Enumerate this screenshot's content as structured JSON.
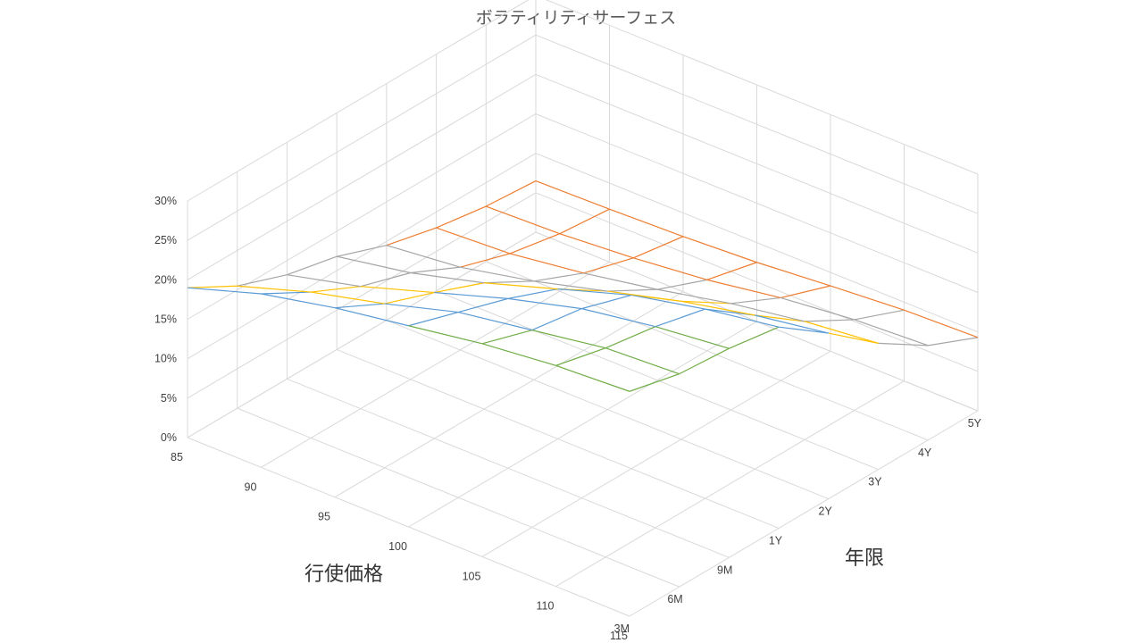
{
  "chart_data": {
    "type": "surface",
    "title": "ボラティリティサーフェス",
    "strike_axis_title": "行使価格",
    "maturity_axis_title": "年限",
    "strikes": [
      "85",
      "90",
      "95",
      "100",
      "105",
      "110",
      "115"
    ],
    "maturities": [
      "3M",
      "6M",
      "9M",
      "1Y",
      "2Y",
      "3Y",
      "4Y",
      "5Y"
    ],
    "z_ticks": [
      "0%",
      "5%",
      "10%",
      "15%",
      "20%",
      "25%",
      "30%"
    ],
    "zlim": [
      0,
      30
    ],
    "grid": true,
    "band_colors": {
      "0-5%": "#4472C4",
      "5-10%": "#ED7D31",
      "10-15%": "#A5A5A5",
      "15-20%": "#FFC000",
      "20-25%": "#5B9BD5",
      "25-30%": "#70AD47"
    },
    "surface_values": [
      [
        19.0,
        15.5,
        13.2,
        11.8,
        9.5,
        8.0,
        7.0,
        6.5
      ],
      [
        22.0,
        18.5,
        15.5,
        13.5,
        10.5,
        8.5,
        7.3,
        6.7
      ],
      [
        24.0,
        20.8,
        18.5,
        16.0,
        12.5,
        9.8,
        8.0,
        7.0
      ],
      [
        25.5,
        23.5,
        21.5,
        19.0,
        15.0,
        11.5,
        9.0,
        7.5
      ],
      [
        27.0,
        25.0,
        24.0,
        22.0,
        17.5,
        13.5,
        10.5,
        8.3
      ],
      [
        28.0,
        26.5,
        25.5,
        24.0,
        19.5,
        15.0,
        11.5,
        9.0
      ],
      [
        28.5,
        27.0,
        26.5,
        25.5,
        21.0,
        16.0,
        12.0,
        9.3
      ]
    ]
  }
}
